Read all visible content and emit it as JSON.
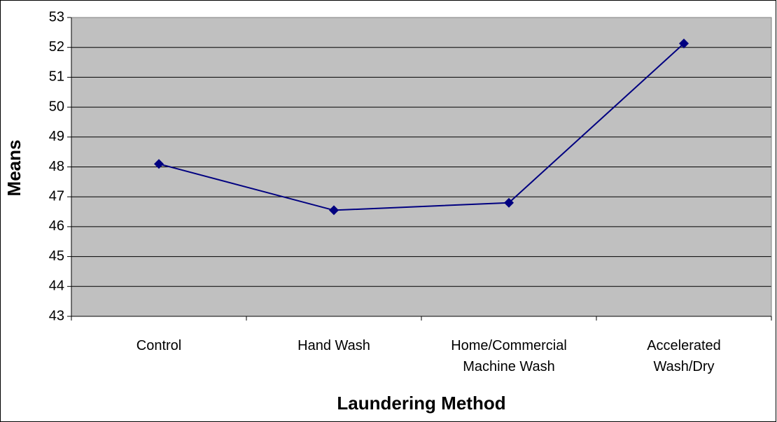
{
  "chart_data": {
    "type": "line",
    "x_label": "Laundering Method",
    "y_label": "Means",
    "categories": [
      "Control",
      "Hand Wash",
      "Home/Commercial\nMachine Wash",
      "Accelerated\nWash/Dry"
    ],
    "series": [
      {
        "name": "Means",
        "color": "#000080",
        "values": [
          48.1,
          46.55,
          46.8,
          52.13
        ]
      }
    ],
    "ylim": [
      43,
      53
    ],
    "yticks": [
      43,
      44,
      45,
      46,
      47,
      48,
      49,
      50,
      51,
      52,
      53
    ],
    "grid": true
  }
}
